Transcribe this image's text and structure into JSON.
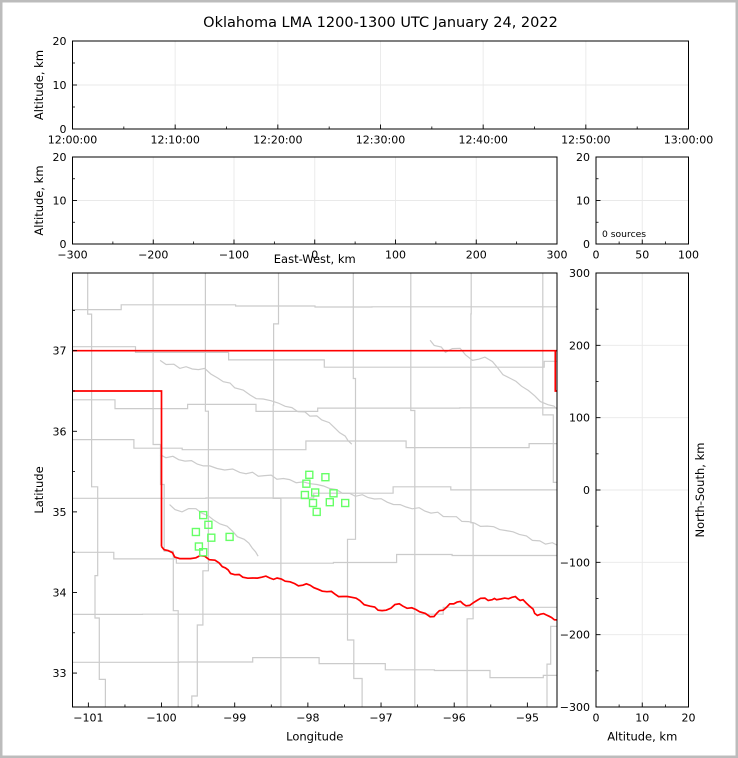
{
  "figure": {
    "title": "Oklahoma LMA 1200-1300 UTC January 24, 2022",
    "frame_color": "#bcbcbc",
    "background": "#ffffff"
  },
  "colors": {
    "axis": "#000000",
    "grid": "#e9e9e9",
    "county": "#cbcbcb",
    "river": "#cbcbcb",
    "state_border": "#ff0000",
    "station": "#66ff66",
    "text": "#000000"
  },
  "chart_data": {
    "type": "scatter",
    "title": "Oklahoma LMA 1200-1300 UTC January 24, 2022",
    "source_count_annotation": "0 sources",
    "panels": [
      {
        "id": "time_height",
        "role": "time-vs-altitude",
        "x": {
          "range": [
            0,
            60
          ],
          "ticks": [
            0,
            10,
            20,
            30,
            40,
            50,
            60
          ],
          "tick_labels": [
            "12:00:00",
            "12:10:00",
            "12:20:00",
            "12:30:00",
            "12:40:00",
            "12:50:00",
            "13:00:00"
          ],
          "minor": [
            5,
            15,
            25,
            35,
            45,
            55
          ],
          "grid": true,
          "label": ""
        },
        "y": {
          "range": [
            0,
            20
          ],
          "ticks": [
            0,
            10,
            20
          ],
          "tick_labels": [
            "0",
            "10",
            "20"
          ],
          "minor": [
            5,
            15
          ],
          "grid": true,
          "label": "Altitude, km"
        },
        "points": []
      },
      {
        "id": "ew_height",
        "role": "east-west-vs-altitude",
        "x": {
          "range": [
            -300,
            300
          ],
          "ticks": [
            -300,
            -200,
            -100,
            0,
            100,
            200,
            300
          ],
          "tick_labels": [
            "−300",
            "−200",
            "−100",
            "0",
            "100",
            "200",
            "300"
          ],
          "minor": [
            -250,
            -150,
            -50,
            50,
            150,
            250
          ],
          "grid": true,
          "label": "East-West, km"
        },
        "y": {
          "range": [
            0,
            20
          ],
          "ticks": [
            0,
            10,
            20
          ],
          "tick_labels": [
            "0",
            "10",
            "20"
          ],
          "minor": [
            5,
            15
          ],
          "grid": true,
          "label": "Altitude, km"
        },
        "points": []
      },
      {
        "id": "alt_hist",
        "role": "source-count-histogram",
        "x": {
          "range": [
            0,
            100
          ],
          "ticks": [
            0,
            50,
            100
          ],
          "tick_labels": [
            "0",
            "50",
            "100"
          ],
          "minor": [
            25,
            75
          ],
          "grid": true,
          "label": ""
        },
        "y": {
          "range": [
            0,
            20
          ],
          "ticks": [
            0,
            10,
            20
          ],
          "tick_labels": [
            "0",
            "10",
            "20"
          ],
          "minor": [
            5,
            15
          ],
          "grid": true,
          "label": ""
        },
        "annotation": "0 sources",
        "points": []
      },
      {
        "id": "plan",
        "role": "plan-view-map",
        "x": {
          "range": [
            -101.217,
            -94.595
          ],
          "ticks": [
            -101,
            -100,
            -99,
            -98,
            -97,
            -96,
            -95
          ],
          "tick_labels": [
            "−101",
            "−100",
            "−99",
            "−98",
            "−97",
            "−96",
            "−95"
          ],
          "minor": [
            -100.5,
            -99.5,
            -98.5,
            -97.5,
            -96.5,
            -95.5
          ],
          "grid": false,
          "label": "Longitude"
        },
        "y": {
          "range": [
            32.579,
            37.964
          ],
          "ticks": [
            33,
            34,
            35,
            36,
            37
          ],
          "tick_labels": [
            "33",
            "34",
            "35",
            "36",
            "37"
          ],
          "minor": [
            33.5,
            34.5,
            35.5,
            36.5,
            37.5
          ],
          "grid": false,
          "label": "Latitude"
        },
        "stations": [
          [
            -97.98,
            35.46
          ],
          [
            -97.76,
            35.43
          ],
          [
            -98.02,
            35.35
          ],
          [
            -97.9,
            35.24
          ],
          [
            -98.04,
            35.21
          ],
          [
            -97.65,
            35.23
          ],
          [
            -97.93,
            35.11
          ],
          [
            -97.7,
            35.12
          ],
          [
            -97.49,
            35.11
          ],
          [
            -97.88,
            35.0
          ],
          [
            -99.43,
            34.96
          ],
          [
            -99.36,
            34.84
          ],
          [
            -99.53,
            34.75
          ],
          [
            -99.32,
            34.68
          ],
          [
            -99.07,
            34.69
          ],
          [
            -99.49,
            34.57
          ],
          [
            -99.43,
            34.5
          ]
        ],
        "state_border": {
          "north": [
            [
              -101.22,
              37.0
            ],
            [
              -94.58,
              37.0
            ]
          ],
          "missouri": [
            [
              -94.618,
              37.0
            ],
            [
              -94.618,
              36.5
            ],
            [
              -94.56,
              36.5
            ]
          ],
          "panhandle": [
            [
              -101.22,
              36.5
            ],
            [
              -100.0,
              36.5
            ],
            [
              -100.0,
              34.57
            ]
          ]
        },
        "red_river": [
          [
            -100.0,
            34.57
          ],
          [
            -99.91,
            34.52
          ],
          [
            -99.82,
            34.44
          ],
          [
            -99.68,
            34.42
          ],
          [
            -99.53,
            34.43
          ],
          [
            -99.41,
            34.45
          ],
          [
            -99.27,
            34.4
          ],
          [
            -99.17,
            34.32
          ],
          [
            -99.09,
            34.28
          ],
          [
            -99.0,
            34.22
          ],
          [
            -98.89,
            34.19
          ],
          [
            -98.75,
            34.18
          ],
          [
            -98.63,
            34.19
          ],
          [
            -98.52,
            34.18
          ],
          [
            -98.42,
            34.18
          ],
          [
            -98.31,
            34.14
          ],
          [
            -98.18,
            34.11
          ],
          [
            -98.07,
            34.09
          ],
          [
            -97.97,
            34.09
          ],
          [
            -97.86,
            34.04
          ],
          [
            -97.74,
            34.01
          ],
          [
            -97.63,
            33.98
          ],
          [
            -97.52,
            33.95
          ],
          [
            -97.4,
            33.94
          ],
          [
            -97.29,
            33.9
          ],
          [
            -97.15,
            33.83
          ],
          [
            -97.04,
            33.78
          ],
          [
            -96.93,
            33.78
          ],
          [
            -96.81,
            33.85
          ],
          [
            -96.7,
            33.83
          ],
          [
            -96.58,
            33.81
          ],
          [
            -96.47,
            33.76
          ],
          [
            -96.33,
            33.7
          ],
          [
            -96.24,
            33.74
          ],
          [
            -96.15,
            33.78
          ],
          [
            -96.06,
            33.86
          ],
          [
            -95.96,
            33.88
          ],
          [
            -95.88,
            33.86
          ],
          [
            -95.79,
            33.84
          ],
          [
            -95.69,
            33.9
          ],
          [
            -95.58,
            33.93
          ],
          [
            -95.48,
            33.91
          ],
          [
            -95.42,
            33.91
          ],
          [
            -95.31,
            33.93
          ],
          [
            -95.21,
            33.94
          ],
          [
            -95.13,
            33.92
          ],
          [
            -95.06,
            33.91
          ],
          [
            -94.97,
            33.83
          ],
          [
            -94.9,
            33.74
          ],
          [
            -94.82,
            33.73
          ],
          [
            -94.74,
            33.72
          ],
          [
            -94.67,
            33.69
          ],
          [
            -94.58,
            33.66
          ]
        ],
        "rivers": [
          [
            [
              -100.02,
              36.88
            ],
            [
              -99.75,
              36.78
            ],
            [
              -99.41,
              36.78
            ],
            [
              -99.23,
              36.66
            ],
            [
              -99.0,
              36.54
            ],
            [
              -98.79,
              36.45
            ],
            [
              -98.61,
              36.4
            ],
            [
              -98.31,
              36.31
            ],
            [
              -98.04,
              36.24
            ],
            [
              -97.81,
              36.14
            ],
            [
              -97.63,
              36.04
            ],
            [
              -97.49,
              35.94
            ],
            [
              -97.4,
              35.84
            ]
          ],
          [
            [
              -100.02,
              35.71
            ],
            [
              -99.68,
              35.63
            ],
            [
              -99.34,
              35.57
            ],
            [
              -98.93,
              35.49
            ],
            [
              -98.59,
              35.45
            ],
            [
              -98.25,
              35.4
            ],
            [
              -97.97,
              35.35
            ],
            [
              -97.7,
              35.29
            ],
            [
              -97.43,
              35.23
            ],
            [
              -97.09,
              35.16
            ],
            [
              -96.74,
              35.09
            ],
            [
              -96.4,
              35.01
            ],
            [
              -96.06,
              34.94
            ],
            [
              -95.72,
              34.86
            ],
            [
              -95.38,
              34.78
            ],
            [
              -95.11,
              34.72
            ],
            [
              -94.83,
              34.64
            ],
            [
              -94.58,
              34.58
            ]
          ],
          [
            [
              -99.89,
              35.09
            ],
            [
              -99.72,
              35.0
            ],
            [
              -99.53,
              35.04
            ],
            [
              -99.36,
              34.95
            ],
            [
              -99.2,
              34.85
            ],
            [
              -99.03,
              34.76
            ],
            [
              -98.87,
              34.66
            ],
            [
              -98.76,
              34.55
            ],
            [
              -98.68,
              34.45
            ]
          ],
          [
            [
              -96.33,
              37.13
            ],
            [
              -96.12,
              36.98
            ],
            [
              -95.92,
              37.03
            ],
            [
              -95.75,
              36.88
            ],
            [
              -95.58,
              36.92
            ],
            [
              -95.4,
              36.78
            ],
            [
              -95.24,
              36.66
            ],
            [
              -95.08,
              36.56
            ],
            [
              -94.9,
              36.44
            ],
            [
              -94.72,
              36.33
            ],
            [
              -94.58,
              36.26
            ]
          ]
        ],
        "points": []
      },
      {
        "id": "ns_height",
        "role": "altitude-vs-north-south",
        "x": {
          "range": [
            0,
            20
          ],
          "ticks": [
            0,
            10,
            20
          ],
          "tick_labels": [
            "0",
            "10",
            "20"
          ],
          "minor": [
            5,
            15
          ],
          "grid": true,
          "label": "Altitude, km"
        },
        "y": {
          "range": [
            -300,
            300
          ],
          "ticks": [
            -300,
            -200,
            -100,
            0,
            100,
            200,
            300
          ],
          "tick_labels": [
            "−300",
            "−200",
            "−100",
            "0",
            "100",
            "200",
            "300"
          ],
          "minor": [
            -250,
            -150,
            -50,
            50,
            150,
            250
          ],
          "grid": true,
          "label_right": "North-South, km"
        },
        "points": []
      }
    ]
  }
}
